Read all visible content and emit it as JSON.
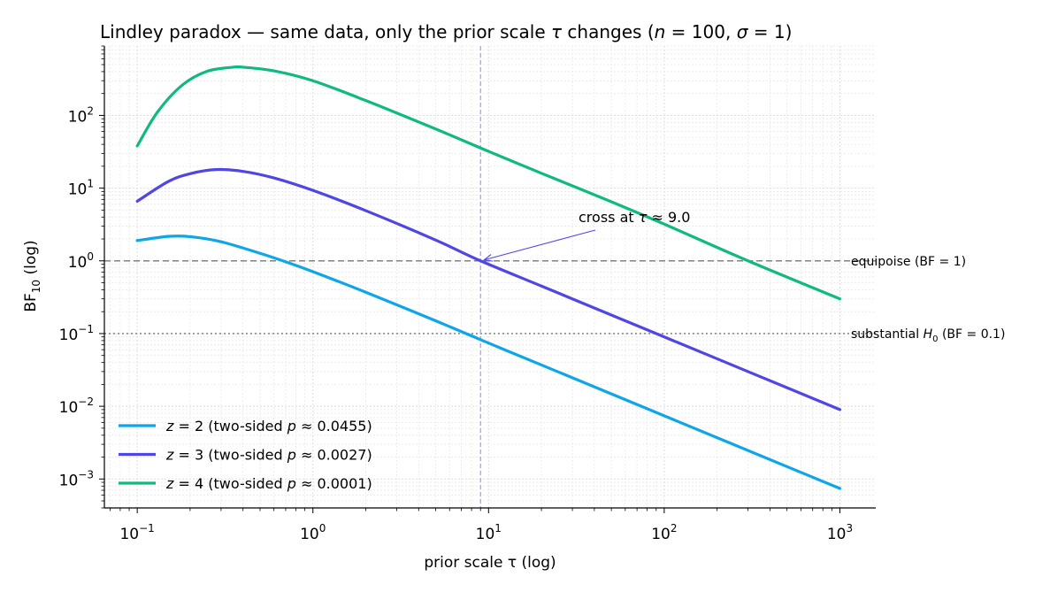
{
  "chart_data": {
    "type": "line",
    "title": {
      "prefix": "Lindley paradox — same data, only the prior scale ",
      "tau": "τ",
      "middle": " changes (",
      "n_var": "n",
      "n_eq": " = 100, ",
      "sigma_var": "σ",
      "sigma_eq": " = 1)"
    },
    "xlabel": "prior scale  τ  (log)",
    "ylabel_base": "BF",
    "ylabel_sub": "10",
    "ylabel_suffix": "  (log)",
    "xscale": "log",
    "yscale": "log",
    "xlim": [
      0.065,
      1600
    ],
    "ylim": [
      0.0004,
      900
    ],
    "grid": true,
    "legend_position": "lower-left",
    "x_ticks": [
      {
        "value": 0.1,
        "base": "10",
        "exp": "−1"
      },
      {
        "value": 1,
        "base": "10",
        "exp": "0"
      },
      {
        "value": 10,
        "base": "10",
        "exp": "1"
      },
      {
        "value": 100,
        "base": "10",
        "exp": "2"
      },
      {
        "value": 1000,
        "base": "10",
        "exp": "3"
      }
    ],
    "y_ticks": [
      {
        "value": 0.001,
        "base": "10",
        "exp": "−3"
      },
      {
        "value": 0.01,
        "base": "10",
        "exp": "−2"
      },
      {
        "value": 0.1,
        "base": "10",
        "exp": "−1"
      },
      {
        "value": 1,
        "base": "10",
        "exp": "0"
      },
      {
        "value": 10,
        "base": "10",
        "exp": "1"
      },
      {
        "value": 100,
        "base": "10",
        "exp": "2"
      }
    ],
    "series": [
      {
        "z": 2,
        "color": "#0ea5e9",
        "legend": {
          "var": "z",
          "eq": " = 2  (two-sided ",
          "p": "p",
          "val": " ≈ 0.0455)"
        },
        "x": [
          0.1,
          0.15,
          0.2,
          0.3,
          0.5,
          0.7,
          1,
          2,
          5,
          10,
          20,
          50,
          100,
          200,
          500,
          1000
        ],
        "y": [
          1.9,
          2.17,
          2.15,
          1.83,
          1.27,
          0.97,
          0.71,
          0.37,
          0.15,
          0.074,
          0.037,
          0.0148,
          0.0074,
          0.0037,
          0.00148,
          0.00074
        ]
      },
      {
        "z": 3,
        "color": "#4f46e5",
        "legend": {
          "var": "z",
          "eq": " = 3  (two-sided ",
          "p": "p",
          "val": " ≈ 0.0027)"
        },
        "x": [
          0.1,
          0.15,
          0.2,
          0.28,
          0.4,
          0.6,
          1,
          2,
          5,
          9,
          20,
          50,
          100,
          200,
          500,
          1000
        ],
        "y": [
          6.6,
          12.3,
          15.8,
          18,
          17,
          13.8,
          9.3,
          4.9,
          1.93,
          1.0,
          0.45,
          0.18,
          0.09,
          0.045,
          0.018,
          0.009
        ]
      },
      {
        "z": 4,
        "color": "#10b981",
        "legend": {
          "var": "z",
          "eq": " = 4  (two-sided ",
          "p": "p",
          "val": " ≈ 0.0001)"
        },
        "x": [
          0.1,
          0.13,
          0.18,
          0.25,
          0.35,
          0.4,
          0.6,
          1,
          2,
          5,
          10,
          20,
          50,
          100,
          300,
          1000
        ],
        "y": [
          38,
          110,
          260,
          405,
          460,
          460,
          410,
          300,
          160,
          65,
          32,
          16,
          6.5,
          3.2,
          1.0,
          0.3
        ]
      }
    ],
    "reference_lines": [
      {
        "y": 1,
        "style": "dashed",
        "color": "#777777",
        "label_prefix": "equipoise (BF = 1)",
        "label_var": "",
        "label_suffix": "",
        "label_color": "#000000"
      },
      {
        "y": 0.1,
        "style": "dotted",
        "color": "#777777",
        "label_prefix": "substantial ",
        "label_var": "H",
        "label_sub": "0",
        "label_suffix": " (BF = 0.1)",
        "label_color": "#475569"
      }
    ],
    "vertical_line": {
      "x": 9,
      "color": "#9f9fe0"
    },
    "annotation": {
      "text_prefix": "cross at ",
      "text_var": "τ",
      "text_suffix": " ≈ 9.0",
      "point_x": 9,
      "point_y": 1,
      "color": "#4f46e5"
    }
  }
}
